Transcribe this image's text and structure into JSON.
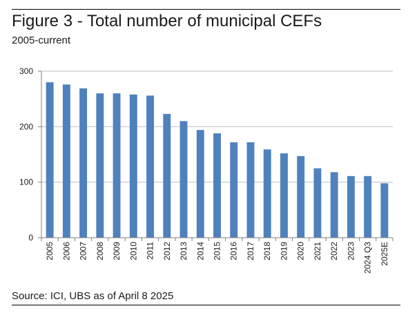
{
  "title": "Figure 3 - Total number of municipal CEFs",
  "subtitle": "2005-current",
  "source": "Source: ICI, UBS as of April 8 2025",
  "colors": {
    "bar": "#4f81bd",
    "grid": "#bfbfbf",
    "axis": "#7f7f7f"
  },
  "chart_data": {
    "type": "bar",
    "title": "Figure 3 - Total number of municipal CEFs",
    "subtitle": "2005-current",
    "xlabel": "",
    "ylabel": "",
    "ylim": [
      0,
      300
    ],
    "yticks": [
      0,
      100,
      200,
      300
    ],
    "grid": true,
    "legend": "none",
    "categories": [
      "2005",
      "2006",
      "2007",
      "2008",
      "2009",
      "2010",
      "2011",
      "2012",
      "2013",
      "2014",
      "2015",
      "2016",
      "2017",
      "2018",
      "2019",
      "2020",
      "2021",
      "2022",
      "2023",
      "2024 Q3",
      "2025E"
    ],
    "values": [
      280,
      276,
      269,
      260,
      260,
      258,
      256,
      223,
      210,
      194,
      188,
      172,
      172,
      159,
      152,
      147,
      125,
      118,
      111,
      111,
      98
    ]
  }
}
